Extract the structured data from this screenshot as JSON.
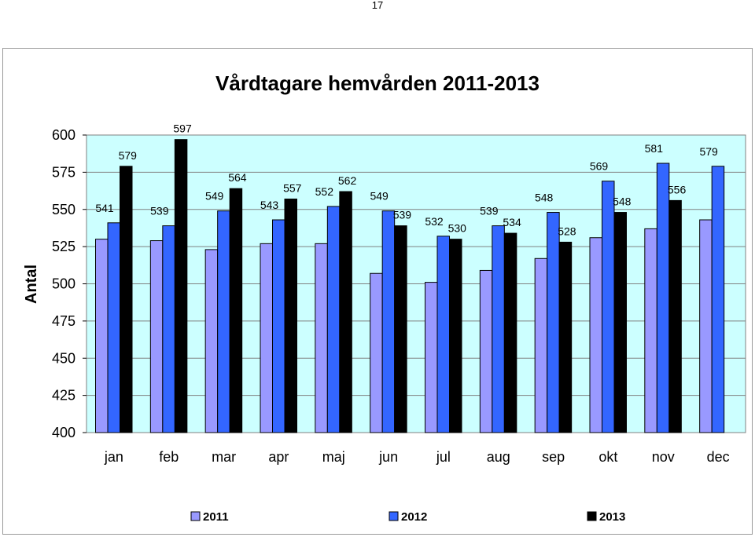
{
  "page": {
    "number": "17"
  },
  "chart_data": {
    "type": "bar",
    "title": "Vårdtagare hemvården 2011-2013",
    "xlabel": "",
    "ylabel": "Antal",
    "ylim": [
      400,
      600
    ],
    "yticks": [
      400,
      425,
      450,
      475,
      500,
      525,
      550,
      575,
      600
    ],
    "categories": [
      "jan",
      "feb",
      "mar",
      "apr",
      "maj",
      "jun",
      "jul",
      "aug",
      "sep",
      "okt",
      "nov",
      "dec"
    ],
    "series": [
      {
        "name": "2011",
        "color": "#9999ff",
        "values": [
          530,
          529,
          523,
          527,
          527,
          507,
          501,
          509,
          517,
          531,
          537,
          543
        ],
        "labels": [
          null,
          null,
          null,
          null,
          null,
          null,
          null,
          null,
          null,
          null,
          null,
          null
        ]
      },
      {
        "name": "2012",
        "color": "#3366ff",
        "values": [
          541,
          539,
          549,
          543,
          552,
          549,
          532,
          539,
          548,
          569,
          581,
          579
        ],
        "labels": [
          541,
          539,
          549,
          543,
          552,
          549,
          532,
          539,
          548,
          569,
          581,
          579
        ]
      },
      {
        "name": "2013",
        "color": "#000000",
        "values": [
          579,
          597,
          564,
          557,
          562,
          539,
          530,
          534,
          528,
          548,
          556,
          null
        ],
        "labels": [
          579,
          597,
          564,
          557,
          562,
          539,
          530,
          534,
          528,
          548,
          556,
          null
        ]
      }
    ],
    "plot_background": "#ccffff",
    "grid": true,
    "legend": "bottom"
  }
}
